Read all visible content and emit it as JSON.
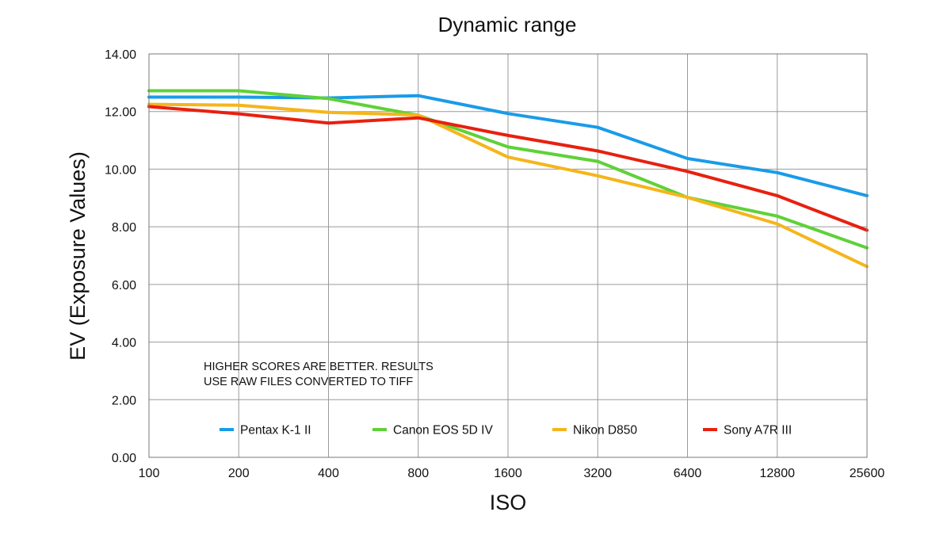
{
  "chart_data": {
    "type": "line",
    "title": "Dynamic range",
    "xlabel": "ISO",
    "ylabel": "EV (Exposure Values)",
    "categories": [
      "100",
      "200",
      "400",
      "800",
      "1600",
      "3200",
      "6400",
      "12800",
      "25600"
    ],
    "yticks": [
      "0.00",
      "2.00",
      "4.00",
      "6.00",
      "8.00",
      "10.00",
      "12.00",
      "14.00"
    ],
    "ylim": [
      0,
      14
    ],
    "grid": true,
    "legend_position": "bottom",
    "annotation": [
      "HIGHER SCORES ARE BETTER. RESULTS",
      "USE RAW FILES CONVERTED TO TIFF"
    ],
    "series": [
      {
        "name": "Pentax K-1 II",
        "color": "#1a9be8",
        "values": [
          12.5,
          12.5,
          12.47,
          12.55,
          11.93,
          11.45,
          10.37,
          9.88,
          9.08
        ]
      },
      {
        "name": "Canon EOS 5D IV",
        "color": "#5fd138",
        "values": [
          12.72,
          12.72,
          12.45,
          11.87,
          10.77,
          10.27,
          9.02,
          8.37,
          7.27
        ]
      },
      {
        "name": "Nikon D850",
        "color": "#f5b51b",
        "values": [
          12.25,
          12.22,
          11.97,
          11.88,
          10.42,
          9.77,
          9.02,
          8.1,
          6.62
        ]
      },
      {
        "name": "Sony A7R III",
        "color": "#e8200f",
        "values": [
          12.17,
          11.92,
          11.6,
          11.78,
          11.17,
          10.63,
          9.92,
          9.08,
          7.88
        ]
      }
    ]
  }
}
